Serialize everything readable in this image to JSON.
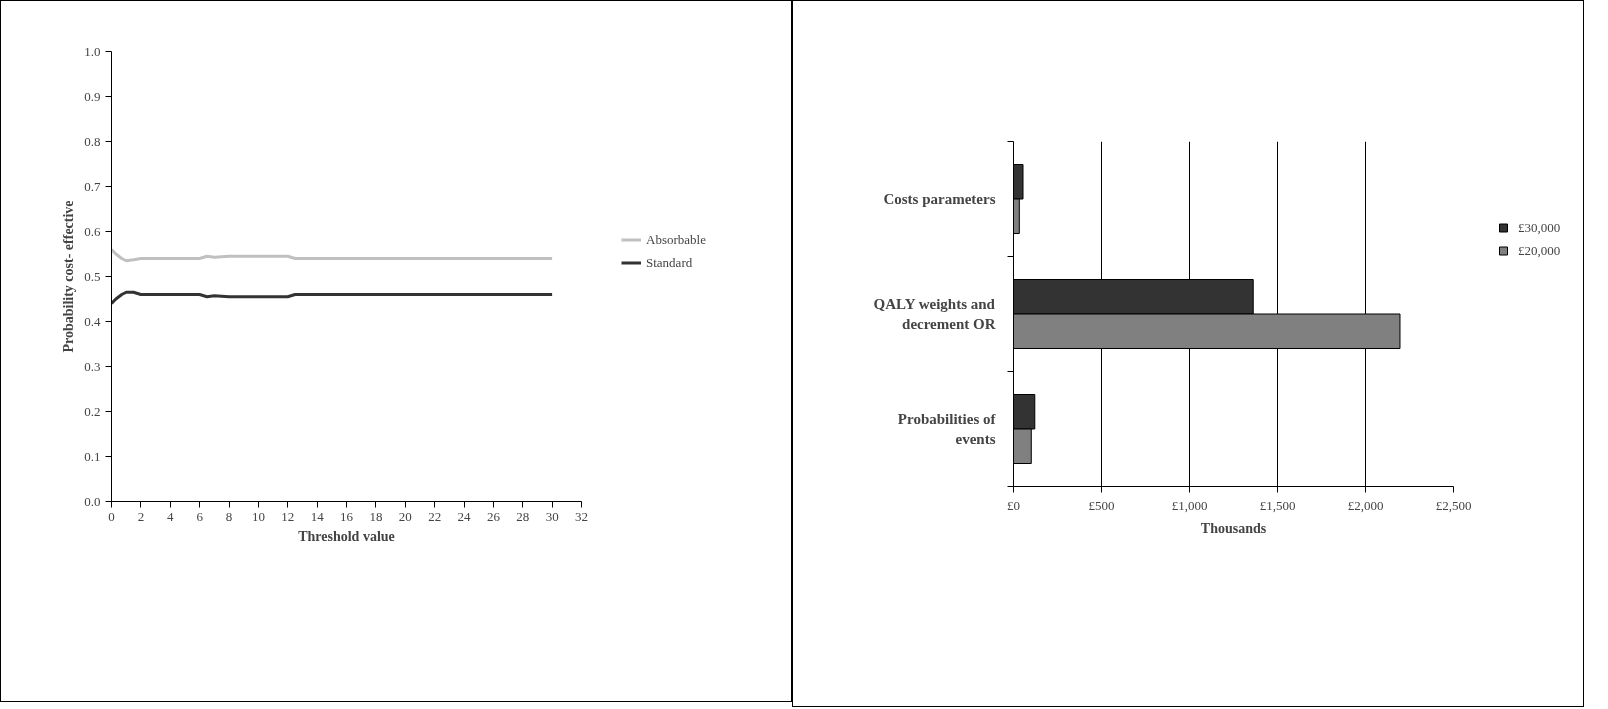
{
  "chart_data": [
    {
      "type": "line",
      "xlabel": "Threshold value",
      "ylabel": "Probability cost- effective",
      "xlim": [
        0,
        32
      ],
      "xticks": [
        0,
        2,
        4,
        6,
        8,
        10,
        12,
        14,
        16,
        18,
        20,
        22,
        24,
        26,
        28,
        30,
        32
      ],
      "ylim": [
        0,
        1
      ],
      "yticks": [
        {
          "value": 0,
          "label": "0.0"
        },
        0.1,
        0.2,
        0.3,
        0.4,
        0.5,
        0.6,
        0.7,
        0.8,
        0.9,
        {
          "value": 1,
          "label": "1.0"
        }
      ],
      "grid": false,
      "legend": "right",
      "line_style": "solid",
      "marker": "none",
      "series": [
        {
          "name": "Absorbable",
          "color": "#c0c0c0",
          "x": [
            0,
            0.3,
            0.7,
            1,
            1.5,
            2,
            4,
            6,
            6.5,
            7,
            8,
            10,
            12,
            12.5,
            16,
            20,
            25,
            30
          ],
          "values": [
            0.56,
            0.55,
            0.54,
            0.535,
            0.537,
            0.54,
            0.54,
            0.54,
            0.545,
            0.543,
            0.545,
            0.545,
            0.545,
            0.54,
            0.54,
            0.54,
            0.54,
            0.54
          ]
        },
        {
          "name": "Standard",
          "color": "#333333",
          "x": [
            0,
            0.3,
            0.7,
            1,
            1.5,
            2,
            4,
            6,
            6.5,
            7,
            8,
            10,
            12,
            12.5,
            16,
            20,
            25,
            30
          ],
          "values": [
            0.44,
            0.45,
            0.46,
            0.465,
            0.465,
            0.46,
            0.46,
            0.46,
            0.455,
            0.457,
            0.455,
            0.455,
            0.455,
            0.46,
            0.46,
            0.46,
            0.46,
            0.46
          ]
        }
      ]
    },
    {
      "type": "bar",
      "orientation": "horizontal",
      "xlabel": "Thousands",
      "categories": [
        "Costs parameters",
        "QALY weights and decrement OR",
        "Probabilities of events"
      ],
      "xlim": [
        0,
        2500
      ],
      "xticks": [
        {
          "value": 0,
          "label": "£0"
        },
        {
          "value": 500,
          "label": "£500"
        },
        {
          "value": 1000,
          "label": "£1,000"
        },
        {
          "value": 1500,
          "label": "£1,500"
        },
        {
          "value": 2000,
          "label": "£2,000"
        },
        {
          "value": 2500,
          "label": "£2,500"
        }
      ],
      "grid": "x",
      "legend": "right",
      "series": [
        {
          "name": "£30,000",
          "color": "#333333",
          "values": [
            54,
            1362,
            121
          ]
        },
        {
          "name": "£20,000",
          "color": "#808080",
          "values": [
            33,
            2196,
            101
          ]
        }
      ]
    }
  ]
}
